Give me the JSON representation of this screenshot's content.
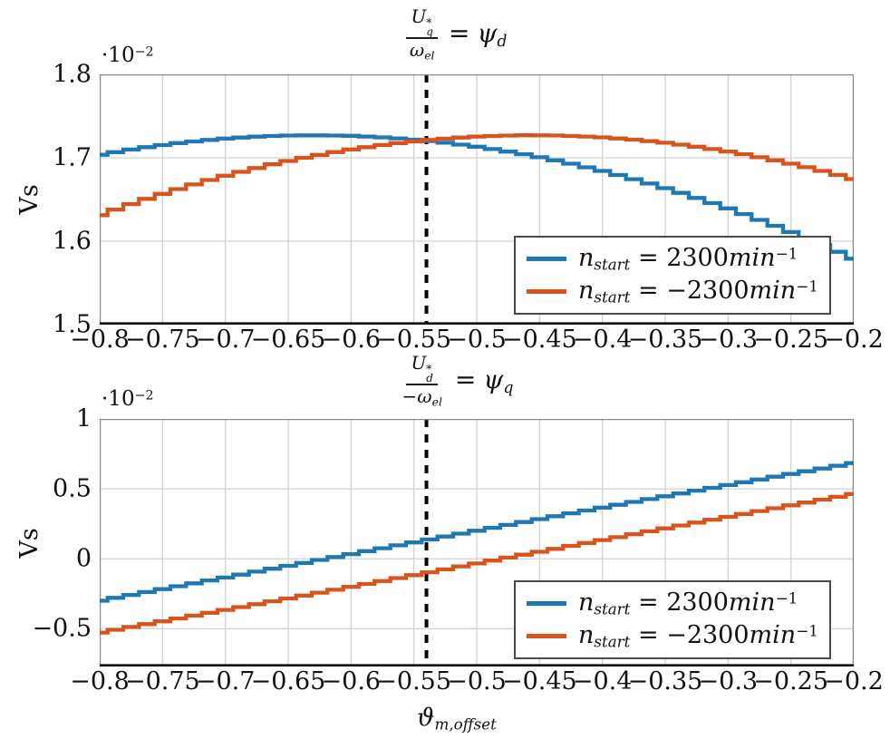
{
  "figure": {
    "background": "#ffffff",
    "accent_blue": "#1f77b4",
    "accent_orange": "#d9531e",
    "grid_color": "#d2d2d2",
    "frame_color": "#8c8c8c",
    "axis_bottom_color": "#111111",
    "dashed_line_color": "#000000",
    "legend_border_color": "#4a4a4a"
  },
  "chart_data": [
    {
      "type": "line",
      "style": "stairs",
      "title_text": "U_q^*/omega_el = psi_d",
      "title_parts": {
        "num_base": "U",
        "num_sup": "*",
        "num_sub": "q",
        "den": "ω",
        "den_sub": "el",
        "eq": "=",
        "psi": "ψ",
        "psi_sub": "d"
      },
      "exp_label": {
        "base": "·10",
        "sup": "−2"
      },
      "ylabel": "Vs",
      "y_scale_exponent": -2,
      "xlim": [
        -0.8,
        -0.2
      ],
      "ylim": [
        1.5,
        1.8
      ],
      "grid": true,
      "dashed_vline_x": -0.54,
      "legend_position": "lower right",
      "x_ticks": [
        -0.8,
        -0.75,
        -0.7,
        -0.65,
        -0.6,
        -0.55,
        -0.5,
        -0.45,
        -0.4,
        -0.35,
        -0.3,
        -0.25,
        -0.2
      ],
      "x_tick_labels": [
        "−0.8",
        "−0.75",
        "−0.7",
        "−0.65",
        "−0.6",
        "−0.55",
        "−0.5",
        "−0.45",
        "−0.4",
        "−0.35",
        "−0.3",
        "−0.25",
        "−0.2"
      ],
      "y_ticks": [
        1.8,
        1.7,
        1.6,
        1.5
      ],
      "y_tick_labels": [
        "1.8",
        "1.7",
        "1.6",
        "1.5"
      ],
      "y_grid": [
        1.7,
        1.6
      ],
      "legend": [
        {
          "pre": "n",
          "sub": "start",
          "eq": " = ",
          "value": "2300",
          "unit": "min",
          "sup": "−1"
        },
        {
          "pre": "n",
          "sub": "start",
          "eq": " = ",
          "value": "−2300",
          "unit": "min",
          "sup": "−1"
        }
      ],
      "x": [
        -0.8,
        -0.78,
        -0.76,
        -0.74,
        -0.72,
        -0.7,
        -0.68,
        -0.66,
        -0.64,
        -0.62,
        -0.6,
        -0.58,
        -0.56,
        -0.54,
        -0.52,
        -0.5,
        -0.48,
        -0.46,
        -0.44,
        -0.42,
        -0.4,
        -0.38,
        -0.36,
        -0.34,
        -0.32,
        -0.3,
        -0.28,
        -0.26,
        -0.24,
        -0.22,
        -0.2
      ],
      "series": [
        {
          "name": "n_start = 2300min^-1",
          "color": "#1f77b4",
          "y": [
            1.7036,
            1.7087,
            1.7133,
            1.7172,
            1.7204,
            1.723,
            1.725,
            1.7263,
            1.7269,
            1.7269,
            1.7263,
            1.725,
            1.723,
            1.7204,
            1.7172,
            1.7133,
            1.7087,
            1.7036,
            1.6978,
            1.6913,
            1.6842,
            1.6765,
            1.6681,
            1.6591,
            1.6495,
            1.6393,
            1.6284,
            1.617,
            1.6049,
            1.5922,
            1.579
          ]
        },
        {
          "name": "n_start = −2300min^-1",
          "color": "#d9531e",
          "y": [
            1.6312,
            1.6419,
            1.652,
            1.6614,
            1.6703,
            1.6785,
            1.686,
            1.693,
            1.6993,
            1.7049,
            1.71,
            1.7143,
            1.7181,
            1.7211,
            1.7236,
            1.7254,
            1.7265,
            1.727,
            1.7268,
            1.726,
            1.7245,
            1.7224,
            1.7197,
            1.7163,
            1.7122,
            1.7075,
            1.7022,
            1.6962,
            1.6896,
            1.6824,
            1.6745
          ]
        }
      ]
    },
    {
      "type": "line",
      "style": "stairs",
      "title_text": "U_d^*/(−omega_el) = psi_q",
      "title_parts": {
        "num_base": "U",
        "num_sup": "*",
        "num_sub": "d",
        "den": "−ω",
        "den_sub": "el",
        "eq": "=",
        "psi": "ψ",
        "psi_sub": "q"
      },
      "exp_label": {
        "base": "·10",
        "sup": "−2"
      },
      "ylabel": "Vs",
      "xlabel_parts": {
        "base": "ϑ",
        "sub": "m,offset"
      },
      "y_scale_exponent": -2,
      "xlim": [
        -0.8,
        -0.2
      ],
      "ylim": [
        -0.77,
        1.0
      ],
      "grid": true,
      "dashed_vline_x": -0.54,
      "legend_position": "lower right",
      "x_ticks": [
        -0.8,
        -0.75,
        -0.7,
        -0.65,
        -0.6,
        -0.55,
        -0.5,
        -0.45,
        -0.4,
        -0.35,
        -0.3,
        -0.25,
        -0.2
      ],
      "x_tick_labels": [
        "−0.8",
        "−0.75",
        "−0.7",
        "−0.65",
        "−0.6",
        "−0.55",
        "−0.5",
        "−0.45",
        "−0.4",
        "−0.35",
        "−0.3",
        "−0.25",
        "−0.2"
      ],
      "y_ticks": [
        1.0,
        0.5,
        0,
        -0.5
      ],
      "y_tick_labels": [
        "1",
        "0.5",
        "0",
        "−0.5"
      ],
      "y_grid": [
        0.5,
        0,
        -0.5
      ],
      "legend": [
        {
          "pre": "n",
          "sub": "start",
          "eq": " = ",
          "value": "2300",
          "unit": "min",
          "sup": "−1"
        },
        {
          "pre": "n",
          "sub": "start",
          "eq": " = ",
          "value": "−2300",
          "unit": "min",
          "sup": "−1"
        }
      ],
      "x": [
        -0.8,
        -0.78,
        -0.76,
        -0.74,
        -0.72,
        -0.7,
        -0.68,
        -0.66,
        -0.64,
        -0.62,
        -0.6,
        -0.58,
        -0.56,
        -0.54,
        -0.52,
        -0.5,
        -0.48,
        -0.46,
        -0.44,
        -0.42,
        -0.4,
        -0.38,
        -0.36,
        -0.34,
        -0.32,
        -0.3,
        -0.28,
        -0.26,
        -0.24,
        -0.22,
        -0.2
      ],
      "series": [
        {
          "name": "n_start = 2300min^-1",
          "color": "#1f77b4",
          "y": [
            -0.3,
            -0.267,
            -0.2338,
            -0.2006,
            -0.1673,
            -0.1339,
            -0.1005,
            -0.067,
            -0.0335,
            0.0,
            0.0335,
            0.067,
            0.1005,
            0.1339,
            0.1673,
            0.2006,
            0.2338,
            0.267,
            0.3,
            0.333,
            0.3657,
            0.3984,
            0.431,
            0.4633,
            0.4955,
            0.5275,
            0.5593,
            0.5909,
            0.6222,
            0.6533,
            0.6842
          ]
        },
        {
          "name": "n_start = −2300min^-1",
          "color": "#d9531e",
          "y": [
            -0.5275,
            -0.4955,
            -0.4633,
            -0.431,
            -0.3984,
            -0.3657,
            -0.333,
            -0.3,
            -0.267,
            -0.2338,
            -0.2006,
            -0.1673,
            -0.1339,
            -0.1005,
            -0.067,
            -0.0335,
            0.0,
            0.0335,
            0.067,
            0.1005,
            0.1339,
            0.1673,
            0.2006,
            0.2338,
            0.267,
            0.3,
            0.333,
            0.3657,
            0.3984,
            0.431,
            0.4633
          ]
        }
      ]
    }
  ]
}
